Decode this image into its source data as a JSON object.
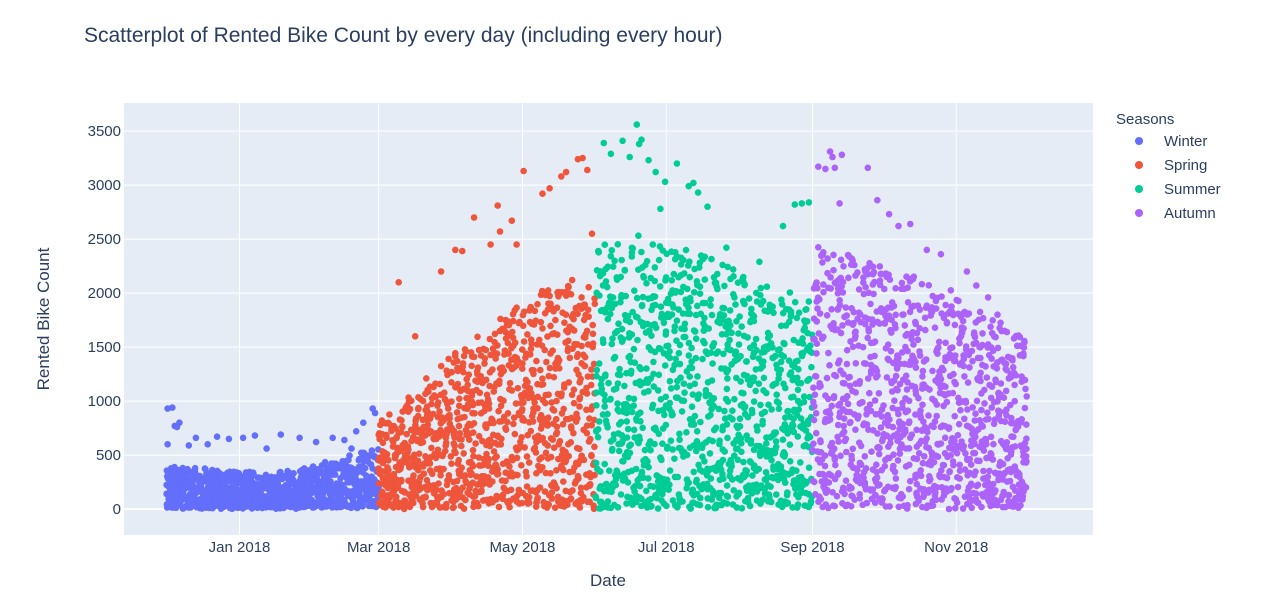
{
  "chart_data": {
    "type": "scatter",
    "title": "Scatterplot of Rented Bike Count by every day (including every hour)",
    "xlabel": "Date",
    "ylabel": "Rented Bike Count",
    "x_range": [
      "2017-11-13",
      "2018-12-29"
    ],
    "ylim": [
      -240,
      3760
    ],
    "y_ticks": [
      0,
      500,
      1000,
      1500,
      2000,
      2500,
      3000,
      3500
    ],
    "x_ticks": [
      {
        "date": "2018-01-01",
        "label": "Jan 2018"
      },
      {
        "date": "2018-03-01",
        "label": "Mar 2018"
      },
      {
        "date": "2018-05-01",
        "label": "May 2018"
      },
      {
        "date": "2018-07-01",
        "label": "Jul 2018"
      },
      {
        "date": "2018-09-01",
        "label": "Sep 2018"
      },
      {
        "date": "2018-11-01",
        "label": "Nov 2018"
      }
    ],
    "legend_title": "Seasons",
    "legend_position": "right",
    "series": [
      {
        "name": "Winter",
        "color": "#636efa",
        "start": "2017-12-01",
        "end": "2018-02-28",
        "profile": [
          [
            0,
            380
          ],
          [
            45,
            320
          ],
          [
            60,
            380
          ],
          [
            90,
            560
          ]
        ],
        "points": [
          [
            "2017-12-01",
            930
          ],
          [
            "2017-12-01",
            600
          ],
          [
            "2017-12-03",
            940
          ],
          [
            "2017-12-04",
            770
          ],
          [
            "2017-12-05",
            760
          ],
          [
            "2017-12-06",
            800
          ],
          [
            "2017-12-10",
            590
          ],
          [
            "2017-12-13",
            660
          ],
          [
            "2017-12-18",
            600
          ],
          [
            "2017-12-22",
            670
          ],
          [
            "2017-12-27",
            650
          ],
          [
            "2018-01-02",
            660
          ],
          [
            "2018-01-07",
            680
          ],
          [
            "2018-01-18",
            690
          ],
          [
            "2018-01-26",
            660
          ],
          [
            "2018-02-02",
            620
          ],
          [
            "2018-02-09",
            660
          ],
          [
            "2018-02-14",
            640
          ],
          [
            "2018-02-19",
            720
          ],
          [
            "2018-02-22",
            800
          ],
          [
            "2018-02-26",
            930
          ],
          [
            "2018-02-27",
            890
          ],
          [
            "2018-02-17",
            560
          ],
          [
            "2018-01-12",
            560
          ]
        ]
      },
      {
        "name": "Spring",
        "color": "#ef553b",
        "start": "2018-03-01",
        "end": "2018-05-31",
        "profile": [
          [
            0,
            800
          ],
          [
            30,
            1400
          ],
          [
            60,
            1900
          ],
          [
            92,
            2300
          ]
        ],
        "points": [
          [
            "2018-03-09",
            2100
          ],
          [
            "2018-03-16",
            1600
          ],
          [
            "2018-03-27",
            2200
          ],
          [
            "2018-04-02",
            2400
          ],
          [
            "2018-04-05",
            2390
          ],
          [
            "2018-04-10",
            2700
          ],
          [
            "2018-04-17",
            2450
          ],
          [
            "2018-04-20",
            2810
          ],
          [
            "2018-04-21",
            2570
          ],
          [
            "2018-04-26",
            2670
          ],
          [
            "2018-04-28",
            2450
          ],
          [
            "2018-05-01",
            3130
          ],
          [
            "2018-05-09",
            2920
          ],
          [
            "2018-05-12",
            2970
          ],
          [
            "2018-05-17",
            3080
          ],
          [
            "2018-05-19",
            3120
          ],
          [
            "2018-05-24",
            3240
          ],
          [
            "2018-05-26",
            3250
          ],
          [
            "2018-05-28",
            3140
          ],
          [
            "2018-05-30",
            2550
          ]
        ]
      },
      {
        "name": "Summer",
        "color": "#00cc96",
        "start": "2018-06-01",
        "end": "2018-08-31",
        "profile": [
          [
            0,
            2450
          ],
          [
            20,
            2550
          ],
          [
            45,
            2350
          ],
          [
            70,
            2100
          ],
          [
            91,
            2000
          ]
        ],
        "points": [
          [
            "2018-06-04",
            3390
          ],
          [
            "2018-06-07",
            3290
          ],
          [
            "2018-06-12",
            3410
          ],
          [
            "2018-06-15",
            3260
          ],
          [
            "2018-06-18",
            3560
          ],
          [
            "2018-06-19",
            3380
          ],
          [
            "2018-06-20",
            3420
          ],
          [
            "2018-06-23",
            3230
          ],
          [
            "2018-06-26",
            3120
          ],
          [
            "2018-06-30",
            3030
          ],
          [
            "2018-07-05",
            3200
          ],
          [
            "2018-07-10",
            2990
          ],
          [
            "2018-07-12",
            3020
          ],
          [
            "2018-07-14",
            2930
          ],
          [
            "2018-07-18",
            2800
          ],
          [
            "2018-07-26",
            2420
          ],
          [
            "2018-08-09",
            2290
          ],
          [
            "2018-08-19",
            2620
          ],
          [
            "2018-08-24",
            2820
          ],
          [
            "2018-08-27",
            2830
          ],
          [
            "2018-08-30",
            2840
          ],
          [
            "2018-06-28",
            2780
          ]
        ]
      },
      {
        "name": "Autumn",
        "color": "#ab63fa",
        "start": "2018-09-01",
        "end": "2018-11-30",
        "profile": [
          [
            0,
            2450
          ],
          [
            30,
            2250
          ],
          [
            60,
            2000
          ],
          [
            90,
            1550
          ]
        ],
        "points": [
          [
            "2018-09-03",
            3170
          ],
          [
            "2018-09-06",
            3150
          ],
          [
            "2018-09-08",
            3310
          ],
          [
            "2018-09-09",
            3260
          ],
          [
            "2018-09-10",
            3160
          ],
          [
            "2018-09-13",
            3280
          ],
          [
            "2018-09-12",
            2830
          ],
          [
            "2018-09-24",
            3160
          ],
          [
            "2018-09-28",
            2860
          ],
          [
            "2018-10-03",
            2730
          ],
          [
            "2018-10-07",
            2620
          ],
          [
            "2018-10-12",
            2640
          ],
          [
            "2018-10-19",
            2400
          ],
          [
            "2018-10-25",
            2360
          ],
          [
            "2018-11-05",
            2200
          ],
          [
            "2018-11-09",
            2070
          ],
          [
            "2018-11-14",
            1960
          ],
          [
            "2018-11-18",
            1800
          ],
          [
            "2018-11-22",
            1640
          ],
          [
            "2018-11-25",
            1580
          ]
        ]
      }
    ]
  }
}
